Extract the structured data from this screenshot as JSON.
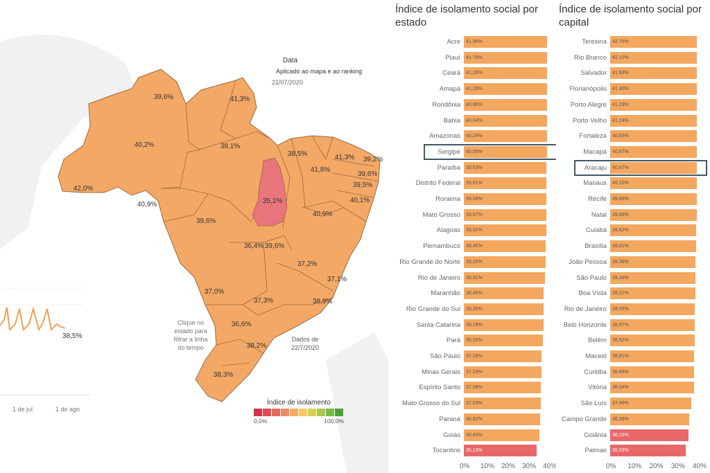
{
  "map": {
    "filter_title": "Data",
    "filter_subtitle": "Aplicado ao mapa e ao ranking",
    "filter_date": "22/07/2020",
    "tip": [
      "Clique no",
      "estado para",
      "filtrar a linha",
      "do tempo"
    ],
    "data_note": [
      "Dados de",
      "22/7/2020"
    ],
    "line_last_value": "38,5%",
    "timeline_ticks": [
      "1 de jul",
      "1 de ago"
    ],
    "legend_title": "Índice de isolamento",
    "legend_min": "0,0%",
    "legend_max": "100,0%",
    "legend_colors": [
      "#d6304b",
      "#de4a55",
      "#e5685e",
      "#ec8b63",
      "#f2ad63",
      "#f4cb62",
      "#d9cf56",
      "#a9c84d",
      "#7ab845",
      "#4f9e3a"
    ],
    "state_labels": [
      "39,6%",
      "41,3%",
      "40,2%",
      "38,1%",
      "38,5%",
      "41,3%",
      "39,2%",
      "41,8%",
      "39,6%",
      "39,5%",
      "42,0%",
      "40,9%",
      "35,1%",
      "40,1%",
      "39,6%",
      "40,9%",
      "36,4%",
      "39,6%",
      "37,2%",
      "37,1%",
      "37,0%",
      "37,3%",
      "38,9%",
      "36,6%",
      "38,2%",
      "38,3%"
    ],
    "land_color": "#f3a866",
    "highlight_color": "#e8747c"
  },
  "chart_data": [
    {
      "type": "bar",
      "title": "Índice de isolamento social por estado",
      "categories": [
        "Acre",
        "Piauí",
        "Ceará",
        "Amapá",
        "Rondônia",
        "Bahia",
        "Amazonas",
        "Sergipe",
        "Paraíba",
        "Distrito Federal",
        "Roraima",
        "Mato Grosso",
        "Alagoas",
        "Pernambuco",
        "Rio Grande do Norte",
        "Rio de Janeiro",
        "Maranhão",
        "Rio Grande do Sul",
        "Santa Catarina",
        "Pará",
        "São Paulo",
        "Minas Gerais",
        "Espírito Santo",
        "Mato Grosso do Sul",
        "Paraná",
        "Goiás",
        "Tocantins"
      ],
      "values": [
        41.96,
        41.78,
        41.26,
        41.26,
        40.95,
        40.94,
        40.29,
        40.05,
        39.63,
        39.61,
        39.58,
        39.57,
        39.52,
        39.46,
        39.2,
        38.91,
        38.46,
        38.26,
        38.18,
        38.05,
        37.28,
        37.23,
        37.08,
        37.03,
        36.62,
        36.43,
        35.13
      ],
      "value_labels": [
        "41,96%",
        "41,78%",
        "41,26%",
        "41,26%",
        "40,95%",
        "40,94%",
        "40,29%",
        "40,05%",
        "39,63%",
        "39,61%",
        "39,58%",
        "39,57%",
        "39,52%",
        "39,46%",
        "39,20%",
        "38,91%",
        "38,46%",
        "38,26%",
        "38,18%",
        "38,05%",
        "37,28%",
        "37,23%",
        "37,08%",
        "37,03%",
        "36,62%",
        "36,43%",
        "35,13%"
      ],
      "highlighted": "Sergipe",
      "x_ticks": [
        "0%",
        "10%",
        "20%",
        "30%",
        "40%"
      ],
      "xlim": [
        0,
        40
      ],
      "colors": {
        "normal": "#f4a75e",
        "low": "#e8686a"
      }
    },
    {
      "type": "bar",
      "title": "Índice de isolamento social por capital",
      "categories": [
        "Teresina",
        "Rio Branco",
        "Salvador",
        "Florianópolis",
        "Porto Alegre",
        "Porto Velho",
        "Fortaleza",
        "Macapá",
        "Aracaju",
        "Manaus",
        "Recife",
        "Natal",
        "Cuiabá",
        "Brasília",
        "João Pessoa",
        "São Paulo",
        "Boa Vista",
        "Rio de Janeiro",
        "Belo Horizonte",
        "Belém",
        "Maceió",
        "Curitiba",
        "Vitória",
        "São Luís",
        "Campo Grande",
        "Goiânia",
        "Palmas"
      ],
      "values": [
        42.75,
        42.1,
        41.93,
        41.4,
        41.29,
        41.24,
        40.93,
        40.87,
        40.67,
        40.1,
        39.86,
        39.85,
        39.62,
        39.61,
        39.36,
        39.34,
        39.21,
        39.09,
        38.97,
        38.92,
        38.81,
        38.68,
        38.64,
        37.46,
        36.38,
        36.15,
        35.03
      ],
      "value_labels": [
        "42,75%",
        "42,10%",
        "41,93%",
        "41,40%",
        "41,29%",
        "41,24%",
        "40,93%",
        "40,87%",
        "40,67%",
        "40,10%",
        "39,86%",
        "39,85%",
        "39,62%",
        "39,61%",
        "39,36%",
        "39,34%",
        "39,21%",
        "39,09%",
        "38,97%",
        "38,92%",
        "38,81%",
        "38,68%",
        "38,64%",
        "37,46%",
        "36,38%",
        "36,15%",
        "35,03%"
      ],
      "highlighted": "Aracaju",
      "x_ticks": [
        "0%",
        "10%",
        "20%",
        "30%",
        "40%"
      ],
      "xlim": [
        0,
        40
      ],
      "colors": {
        "normal": "#f4a75e",
        "low": "#e8686a"
      }
    }
  ]
}
